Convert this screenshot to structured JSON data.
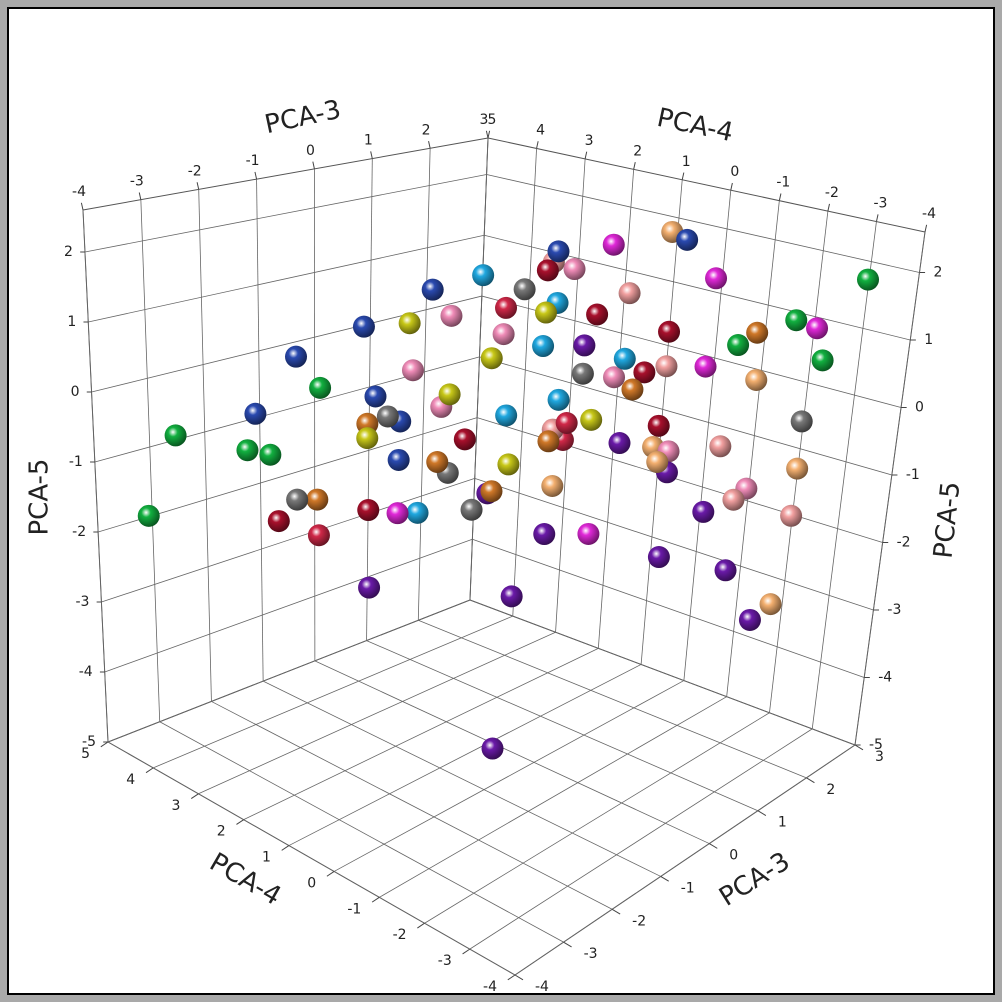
{
  "chart_data": {
    "type": "scatter3d",
    "x_label": "PCA-3",
    "y_label": "PCA-4",
    "z_label": "PCA-5",
    "xlim": [
      -4,
      3
    ],
    "ylim": [
      -4,
      5
    ],
    "zlim": [
      -5,
      2.6
    ],
    "xticks": [
      -4,
      -3,
      -2,
      -1,
      0,
      1,
      2,
      3
    ],
    "yticks": [
      -4,
      -3,
      -2,
      -1,
      0,
      1,
      2,
      3,
      4,
      5
    ],
    "zticks": [
      -5,
      -4,
      -3,
      -2,
      -1,
      0,
      1,
      2
    ],
    "grid": true,
    "series": [
      {
        "color": "#2a4ab0",
        "x": [
          -1.5,
          -2.2,
          -1.8,
          -1,
          -2.6,
          -0.8,
          0.2,
          1.6,
          -0.5
        ],
        "y": [
          2.2,
          2.8,
          1.6,
          2,
          3.2,
          1.6,
          0.2,
          -0.8,
          2.6
        ],
        "z": [
          1.0,
          0.6,
          0.2,
          -0.4,
          -0.2,
          1.5,
          2.1,
          2.2,
          -1.2
        ]
      },
      {
        "color": "#12b040",
        "x": [
          -3.2,
          -3.4,
          -2.5,
          -2,
          2.8,
          2.2,
          1.8,
          2.5,
          -1.6
        ],
        "y": [
          4.2,
          4.6,
          3.5,
          3.6,
          -3.2,
          -2.5,
          -1.8,
          -2.8,
          3
        ],
        "z": [
          -0.6,
          -1.8,
          -0.8,
          -1,
          1.8,
          1.2,
          0.8,
          0.6,
          0
        ]
      },
      {
        "color": "#e028d8",
        "x": [
          1,
          2,
          2.6,
          1.5,
          0.4,
          -1.2
        ],
        "y": [
          0,
          -1,
          -2.5,
          -1.5,
          -0.5,
          1.8
        ],
        "z": [
          2.1,
          1.6,
          1.0,
          0.5,
          -1.8,
          -1.6
        ]
      },
      {
        "color": "#f08cb8",
        "x": [
          -0.8,
          -1.3,
          -0.2,
          0.5,
          0.8,
          -0.6,
          1.2,
          2.4
        ],
        "y": [
          1.2,
          1.4,
          0.8,
          0.2,
          -0.4,
          1.6,
          -1.2,
          -1.6
        ],
        "z": [
          1.2,
          0.5,
          0.9,
          1.8,
          0.3,
          -0.2,
          -0.7,
          -1.5
        ]
      },
      {
        "color": "#f2a0a0",
        "x": [
          0.3,
          0.9,
          1.4,
          2,
          2.6,
          1.8,
          0.6
        ],
        "y": [
          0.4,
          -0.5,
          -0.8,
          -1.4,
          -2.4,
          -2,
          0.6
        ],
        "z": [
          1.9,
          1.5,
          0.4,
          -0.8,
          -1.8,
          -1.4,
          -0.6
        ]
      },
      {
        "color": "#d07828",
        "x": [
          -1.6,
          -1,
          -0.5,
          0.8,
          2.4,
          0,
          -2
        ],
        "y": [
          2,
          1.2,
          0.6,
          -0.8,
          -1.5,
          0,
          2.6
        ],
        "z": [
          -0.3,
          -0.8,
          -1.2,
          0.2,
          0.8,
          -0.5,
          -1.4
        ]
      },
      {
        "color": "#f4b070",
        "x": [
          1.5,
          2.2,
          1,
          0.2,
          2.8,
          1.8,
          2
        ],
        "y": [
          -0.6,
          -1.8,
          -1.2,
          0.1,
          -2.2,
          -0.2,
          -2.8
        ],
        "z": [
          2.3,
          0.2,
          -0.8,
          -1.2,
          -1.2,
          -1,
          -2.8
        ]
      },
      {
        "color": "#c8c818",
        "x": [
          -1.2,
          -0.8,
          -0.4,
          0.2,
          -1.6,
          0.6,
          -0.2
        ],
        "y": [
          1.6,
          1.2,
          0.8,
          0.4,
          2,
          -0.2,
          0.6
        ],
        "z": [
          1.1,
          0.1,
          0.6,
          1.2,
          -0.5,
          -0.3,
          -0.9
        ]
      },
      {
        "color": "#20a8e0",
        "x": [
          -0.6,
          0,
          0.4,
          -0.2,
          0.8,
          -1.0,
          0.6
        ],
        "y": [
          0.8,
          0.2,
          0.4,
          -0.4,
          -0.6,
          1.6,
          1.6
        ],
        "z": [
          1.8,
          0.8,
          1.3,
          0.2,
          0.6,
          -1.6,
          -0.6
        ]
      },
      {
        "color": "#787878",
        "x": [
          -0.2,
          -1.4,
          -0.8,
          0.4,
          2.6,
          -2.2,
          -0.6
        ],
        "y": [
          0.4,
          1.8,
          1.2,
          -0.2,
          -2.4,
          2.8,
          0.9
        ],
        "z": [
          1.6,
          -0.2,
          -1.0,
          0.4,
          -0.4,
          -1.4,
          -1.5
        ]
      },
      {
        "color": "#a8102c",
        "x": [
          0.2,
          0.6,
          1.0,
          -0.5,
          1.4,
          -1.4,
          -2.2,
          0.8
        ],
        "y": [
          0.4,
          -0.2,
          -0.8,
          1.2,
          -0.8,
          2.2,
          3.2,
          -1.4
        ],
        "z": [
          1.8,
          1.2,
          0.4,
          -0.6,
          0.9,
          -1.6,
          -1.8,
          -0.2
        ]
      },
      {
        "color": "#6a1aa8",
        "x": [
          0.4,
          0.8,
          1.2,
          -0.4,
          1.6,
          0,
          -0.4,
          1.4,
          0.8,
          1.8,
          -1.2,
          -0.4
        ],
        "y": [
          -0.2,
          -0.6,
          -1.2,
          0.8,
          -1.6,
          0,
          0.2,
          -2.4,
          -1.6,
          -2.6,
          2.4,
          0.5
        ],
        "z": [
          0.8,
          -0.6,
          -1,
          -1.3,
          -1.6,
          -1.8,
          -2.6,
          -2.2,
          -2,
          -3.0,
          -2.8,
          -4.8
        ]
      },
      {
        "color": "#d02848",
        "x": [
          0,
          0.5,
          -1.8,
          0.8
        ],
        "y": [
          1,
          0.2,
          2.8,
          0.6
        ],
        "z": [
          1.2,
          -0.4,
          -2.0,
          -0.8
        ]
      }
    ]
  }
}
